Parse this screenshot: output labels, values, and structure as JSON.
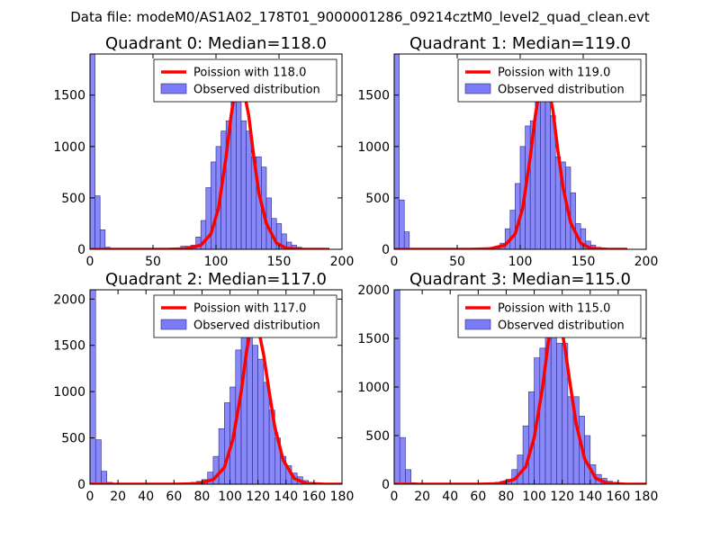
{
  "suptitle": "Data file: modeM0/AS1A02_178T01_9000001286_09214cztM0_level2_quad_clean.evt",
  "colors": {
    "bar": "#7b7bf7",
    "bar_edge": "#2a2a8a",
    "line": "#ff0000"
  },
  "chart_data": [
    {
      "type": "bar",
      "title": "Quadrant 0: Median=118.0",
      "xlim": [
        0,
        200
      ],
      "ylim": [
        0,
        1900
      ],
      "xticks": [
        0,
        50,
        100,
        150,
        200
      ],
      "yticks": [
        0,
        500,
        1000,
        1500
      ],
      "median": 118.0,
      "legend": {
        "placement": "top-right",
        "line_label": "Poission with 118.0",
        "bar_label": "Observed distribution"
      },
      "bin_width": 4,
      "bins": [
        0,
        4,
        8,
        12,
        16,
        20,
        24,
        28,
        32,
        36,
        40,
        44,
        48,
        52,
        56,
        60,
        64,
        68,
        72,
        76,
        80,
        84,
        88,
        92,
        96,
        100,
        104,
        108,
        112,
        116,
        120,
        124,
        128,
        132,
        136,
        140,
        144,
        148,
        152,
        156,
        160,
        164,
        168,
        172,
        176,
        180,
        184
      ],
      "values": [
        1900,
        520,
        190,
        20,
        5,
        3,
        3,
        3,
        3,
        3,
        3,
        3,
        3,
        3,
        3,
        3,
        5,
        10,
        30,
        30,
        40,
        120,
        280,
        600,
        850,
        1000,
        1150,
        1250,
        1580,
        1450,
        1250,
        1150,
        900,
        900,
        800,
        500,
        300,
        250,
        150,
        70,
        40,
        20,
        10,
        5,
        5,
        5,
        3
      ],
      "curve": {
        "x": [
          0,
          60,
          76,
          88,
          96,
          102,
          108,
          112,
          116,
          118,
          122,
          126,
          130,
          134,
          140,
          148,
          156,
          170,
          190
        ],
        "y": [
          0,
          0,
          5,
          40,
          150,
          400,
          900,
          1300,
          1620,
          1660,
          1550,
          1300,
          900,
          550,
          250,
          60,
          10,
          0,
          0
        ]
      }
    },
    {
      "type": "bar",
      "title": "Quadrant 1: Median=119.0",
      "xlim": [
        0,
        200
      ],
      "ylim": [
        0,
        1900
      ],
      "xticks": [
        0,
        50,
        100,
        150,
        200
      ],
      "yticks": [
        0,
        500,
        1000,
        1500
      ],
      "median": 119.0,
      "legend": {
        "placement": "top-right",
        "line_label": "Poission with 119.0",
        "bar_label": "Observed distribution"
      },
      "bin_width": 4,
      "bins": [
        0,
        4,
        8,
        12,
        16,
        20,
        24,
        28,
        32,
        36,
        40,
        44,
        48,
        52,
        56,
        60,
        64,
        68,
        72,
        76,
        80,
        84,
        88,
        92,
        96,
        100,
        104,
        108,
        112,
        116,
        120,
        124,
        128,
        132,
        136,
        140,
        144,
        148,
        152,
        156,
        160,
        164,
        168,
        172,
        176,
        180
      ],
      "values": [
        1900,
        480,
        170,
        10,
        3,
        3,
        3,
        3,
        3,
        3,
        3,
        3,
        3,
        3,
        3,
        3,
        3,
        5,
        10,
        20,
        30,
        60,
        200,
        380,
        640,
        1000,
        1200,
        1250,
        1480,
        1600,
        1450,
        1300,
        900,
        850,
        800,
        550,
        250,
        200,
        80,
        40,
        20,
        10,
        5,
        5,
        3,
        3
      ],
      "curve": {
        "x": [
          0,
          60,
          76,
          88,
          96,
          102,
          108,
          112,
          116,
          119,
          122,
          126,
          130,
          134,
          140,
          148,
          156,
          170,
          185
        ],
        "y": [
          0,
          0,
          5,
          40,
          150,
          400,
          900,
          1300,
          1600,
          1700,
          1600,
          1350,
          950,
          600,
          260,
          60,
          10,
          0,
          0
        ]
      }
    },
    {
      "type": "bar",
      "title": "Quadrant 2: Median=117.0",
      "xlim": [
        0,
        180
      ],
      "ylim": [
        0,
        2100
      ],
      "xticks": [
        0,
        20,
        40,
        60,
        80,
        100,
        120,
        140,
        160,
        180
      ],
      "yticks": [
        0,
        500,
        1000,
        1500,
        2000
      ],
      "median": 117.0,
      "legend": {
        "placement": "top-right",
        "line_label": "Poission with 117.0",
        "bar_label": "Observed distribution"
      },
      "bin_width": 4,
      "bins": [
        0,
        4,
        8,
        12,
        16,
        20,
        24,
        28,
        32,
        36,
        40,
        44,
        48,
        52,
        56,
        60,
        64,
        68,
        72,
        76,
        80,
        84,
        88,
        92,
        96,
        100,
        104,
        108,
        112,
        116,
        120,
        124,
        128,
        132,
        136,
        140,
        144,
        148,
        152,
        156,
        160,
        164,
        168
      ],
      "values": [
        2100,
        480,
        140,
        20,
        5,
        3,
        3,
        3,
        3,
        3,
        3,
        3,
        3,
        3,
        3,
        3,
        5,
        10,
        20,
        30,
        50,
        130,
        300,
        600,
        880,
        1050,
        1450,
        1850,
        1950,
        1500,
        1350,
        1100,
        800,
        500,
        300,
        200,
        120,
        80,
        40,
        20,
        10,
        5,
        3
      ],
      "curve": {
        "x": [
          0,
          60,
          76,
          88,
          96,
          102,
          108,
          112,
          116,
          117,
          120,
          124,
          128,
          132,
          138,
          146,
          154,
          168,
          180
        ],
        "y": [
          0,
          0,
          5,
          50,
          180,
          480,
          1000,
          1450,
          1780,
          1810,
          1700,
          1400,
          1000,
          620,
          260,
          60,
          10,
          0,
          0
        ]
      }
    },
    {
      "type": "bar",
      "title": "Quadrant 3: Median=115.0",
      "xlim": [
        0,
        180
      ],
      "ylim": [
        0,
        2000
      ],
      "xticks": [
        0,
        20,
        40,
        60,
        80,
        100,
        120,
        140,
        160,
        180
      ],
      "yticks": [
        0,
        500,
        1000,
        1500,
        2000
      ],
      "median": 115.0,
      "legend": {
        "placement": "top-right",
        "line_label": "Poission with 115.0",
        "bar_label": "Observed distribution"
      },
      "bin_width": 4,
      "bins": [
        0,
        4,
        8,
        12,
        16,
        20,
        24,
        28,
        32,
        36,
        40,
        44,
        48,
        52,
        56,
        60,
        64,
        68,
        72,
        76,
        80,
        84,
        88,
        92,
        96,
        100,
        104,
        108,
        112,
        116,
        120,
        124,
        128,
        132,
        136,
        140,
        144,
        148,
        152,
        156,
        160,
        164,
        168
      ],
      "values": [
        2000,
        480,
        150,
        15,
        5,
        3,
        3,
        3,
        3,
        3,
        3,
        3,
        3,
        3,
        3,
        3,
        5,
        10,
        20,
        30,
        50,
        150,
        300,
        600,
        950,
        1300,
        1400,
        1560,
        1900,
        1450,
        1450,
        900,
        900,
        700,
        500,
        200,
        100,
        60,
        30,
        20,
        10,
        5,
        3
      ],
      "curve": {
        "x": [
          0,
          60,
          74,
          86,
          94,
          100,
          106,
          110,
          114,
          115,
          118,
          122,
          126,
          130,
          136,
          144,
          152,
          166,
          180
        ],
        "y": [
          0,
          0,
          5,
          50,
          180,
          480,
          1000,
          1450,
          1800,
          1830,
          1720,
          1400,
          1000,
          620,
          260,
          60,
          10,
          0,
          0
        ]
      }
    }
  ]
}
